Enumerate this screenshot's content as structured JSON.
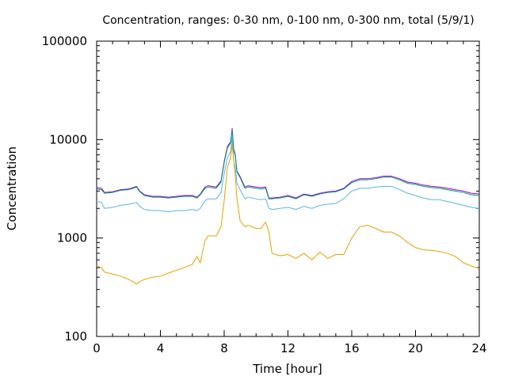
{
  "chart_data": {
    "type": "line",
    "title": "Concentration, ranges: 0-30 nm, 0-100 nm, 0-300 nm, total (5/9/1)",
    "xlabel": "Time [hour]",
    "ylabel": "Concentration",
    "xlim": [
      0,
      24
    ],
    "ylim": [
      100,
      100000
    ],
    "yscale": "log",
    "grid": false,
    "legend": "none",
    "x_ticks": [
      0,
      4,
      8,
      12,
      16,
      20,
      24
    ],
    "x_tick_labels": [
      "0",
      "4",
      "8",
      "12",
      "16",
      "20",
      "24"
    ],
    "y_ticks": [
      100,
      1000,
      10000,
      100000
    ],
    "y_tick_labels": [
      "100",
      "1000",
      "10000",
      "100000"
    ],
    "x": [
      0,
      0.3,
      0.5,
      1,
      1.5,
      2,
      2.3,
      2.5,
      2.7,
      3,
      3.5,
      4,
      4.5,
      5,
      5.5,
      6,
      6.3,
      6.5,
      6.8,
      7,
      7.5,
      7.8,
      8,
      8.2,
      8.4,
      8.5,
      8.6,
      8.7,
      8.8,
      9,
      9.3,
      9.5,
      10,
      10.3,
      10.6,
      10.8,
      11,
      11.5,
      12,
      12.5,
      13,
      13.5,
      14,
      14.5,
      15,
      15.5,
      16,
      16.5,
      17,
      17.5,
      18,
      18.5,
      19,
      19.5,
      20,
      20.5,
      21,
      21.5,
      22,
      22.5,
      23,
      23.5,
      24
    ],
    "series": [
      {
        "color": "#9400d3",
        "values": [
          3250,
          3200,
          2900,
          2950,
          3100,
          3150,
          3250,
          3350,
          3000,
          2750,
          2650,
          2650,
          2600,
          2650,
          2700,
          2700,
          2600,
          2800,
          3300,
          3400,
          3300,
          3800,
          6000,
          8500,
          9500,
          13000,
          8000,
          7000,
          4800,
          4200,
          3300,
          3400,
          3300,
          3250,
          3300,
          2550,
          2550,
          2600,
          2700,
          2550,
          2800,
          2700,
          2850,
          2950,
          3000,
          3200,
          3750,
          4000,
          4000,
          4100,
          4250,
          4250,
          4000,
          3700,
          3600,
          3450,
          3350,
          3300,
          3200,
          3100,
          3000,
          2850,
          2800
        ]
      },
      {
        "color": "#009e73",
        "values": [
          3150,
          3100,
          2850,
          2900,
          3050,
          3100,
          3200,
          3300,
          2950,
          2700,
          2600,
          2600,
          2550,
          2600,
          2650,
          2650,
          2550,
          2750,
          3200,
          3300,
          3200,
          3700,
          5800,
          8200,
          9200,
          12500,
          7700,
          6800,
          4700,
          4100,
          3200,
          3300,
          3200,
          3150,
          3200,
          2500,
          2500,
          2550,
          2650,
          2500,
          2750,
          2650,
          2800,
          2900,
          2950,
          3150,
          3650,
          3900,
          3900,
          4000,
          4150,
          4150,
          3900,
          3600,
          3500,
          3350,
          3250,
          3200,
          3100,
          3000,
          2900,
          2750,
          2700
        ]
      },
      {
        "color": "#56b4e9",
        "values": [
          2350,
          2300,
          2000,
          2050,
          2150,
          2200,
          2250,
          2300,
          2100,
          1950,
          1900,
          1900,
          1850,
          1900,
          1900,
          1950,
          1900,
          2000,
          2400,
          2500,
          2500,
          2900,
          4500,
          6500,
          7500,
          10500,
          6000,
          5200,
          3600,
          3100,
          2500,
          2600,
          2500,
          2450,
          2500,
          2000,
          1950,
          2000,
          2050,
          1950,
          2100,
          2000,
          2150,
          2200,
          2250,
          2500,
          3000,
          3200,
          3200,
          3300,
          3350,
          3350,
          3100,
          2850,
          2700,
          2550,
          2450,
          2450,
          2350,
          2250,
          2150,
          2050,
          2000
        ]
      },
      {
        "color": "#e69f00",
        "values": [
          520,
          500,
          450,
          430,
          410,
          380,
          360,
          340,
          360,
          380,
          400,
          410,
          440,
          470,
          500,
          540,
          650,
          560,
          950,
          1050,
          1050,
          1300,
          2400,
          5200,
          6500,
          9000,
          6200,
          4200,
          2500,
          1500,
          1300,
          1350,
          1250,
          1250,
          1450,
          1150,
          700,
          660,
          680,
          620,
          700,
          600,
          720,
          620,
          680,
          680,
          1000,
          1300,
          1350,
          1250,
          1150,
          1150,
          1050,
          900,
          800,
          760,
          750,
          730,
          700,
          650,
          560,
          520,
          490
        ]
      }
    ]
  }
}
